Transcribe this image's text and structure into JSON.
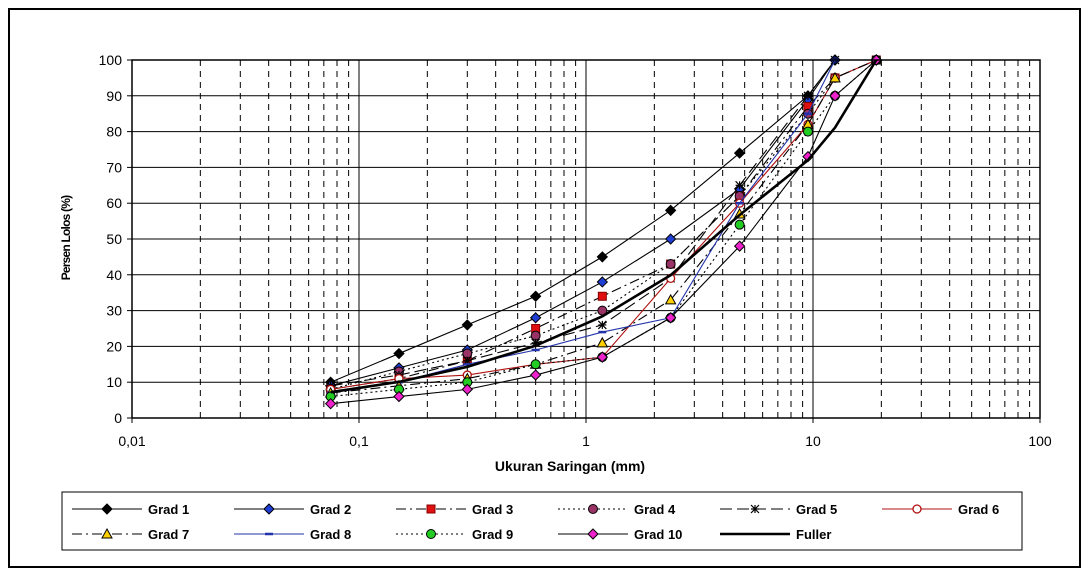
{
  "chart_data": {
    "type": "line",
    "x_scale": "log",
    "xlabel": "Ukuran Saringan (mm)",
    "ylabel": "Persen Lolos (%)",
    "xlim": [
      0.01,
      100
    ],
    "ylim": [
      0,
      100
    ],
    "x_ticks": [
      "0,01",
      "0,1",
      "1",
      "10",
      "100"
    ],
    "y_ticks": [
      "0",
      "10",
      "20",
      "30",
      "40",
      "50",
      "60",
      "70",
      "80",
      "90",
      "100"
    ],
    "grid": "on",
    "legend_position": "bottom",
    "sieve_sizes": [
      0.075,
      0.15,
      0.3,
      0.6,
      1.18,
      2.36,
      4.75,
      9.5,
      12.5,
      19
    ],
    "series": [
      {
        "name": "Grad 1",
        "style": "solid",
        "marker": "diamond",
        "color": "#000000",
        "marker_fill": "#000000",
        "values": [
          10,
          18,
          26,
          34,
          45,
          58,
          74,
          90,
          100,
          100
        ]
      },
      {
        "name": "Grad 2",
        "style": "solid",
        "marker": "diamond",
        "color": "#000000",
        "marker_fill": "#1f3fd4",
        "values": [
          9,
          14,
          19,
          28,
          38,
          50,
          64,
          89,
          100,
          100
        ]
      },
      {
        "name": "Grad 3",
        "style": "dashdot",
        "marker": "square",
        "color": "#000000",
        "marker_fill": "#e01010",
        "values": [
          8,
          11,
          16,
          25,
          34,
          43,
          62,
          87,
          95,
          100
        ]
      },
      {
        "name": "Grad 4",
        "style": "dotted",
        "marker": "circle",
        "color": "#000000",
        "marker_fill": "#993366",
        "values": [
          8,
          13,
          18,
          23,
          30,
          43,
          62,
          85,
          95,
          100
        ]
      },
      {
        "name": "Grad 5",
        "style": "longdash",
        "marker": "star",
        "color": "#000000",
        "marker_fill": "#000000",
        "values": [
          9,
          12,
          16,
          21,
          26,
          39,
          65,
          90,
          100,
          100
        ]
      },
      {
        "name": "Grad 6",
        "style": "solid",
        "marker": "circle-open",
        "color": "#b01010",
        "marker_fill": "#ffffff",
        "values": [
          8,
          11,
          12,
          15,
          17,
          39,
          60,
          82,
          95,
          100
        ]
      },
      {
        "name": "Grad 7",
        "style": "dashdot",
        "marker": "triangle",
        "color": "#000000",
        "marker_fill": "#ffd000",
        "values": [
          7,
          9,
          11,
          15,
          21,
          33,
          57,
          82,
          95,
          100
        ]
      },
      {
        "name": "Grad 8",
        "style": "solid",
        "marker": "dash",
        "color": "#2233aa",
        "marker_fill": "#2233aa",
        "values": [
          7,
          10,
          15,
          19,
          24,
          28,
          60,
          85,
          100,
          100
        ]
      },
      {
        "name": "Grad 9",
        "style": "dotted",
        "marker": "circle",
        "color": "#000000",
        "marker_fill": "#22cc22",
        "values": [
          6,
          8,
          10,
          15,
          17,
          28,
          54,
          80,
          90,
          100
        ]
      },
      {
        "name": "Grad 10",
        "style": "solid",
        "marker": "diamond",
        "color": "#000000",
        "marker_fill": "#ee22cc",
        "values": [
          4,
          6,
          8,
          12,
          17,
          28,
          48,
          73,
          90,
          100
        ]
      },
      {
        "name": "Fuller",
        "style": "solid-thick",
        "marker": "none",
        "color": "#000000",
        "marker_fill": "#000000",
        "values": [
          7.2,
          10.1,
          14.3,
          20.2,
          28.4,
          39.9,
          56.7,
          72.0,
          81.1,
          100
        ]
      }
    ]
  }
}
